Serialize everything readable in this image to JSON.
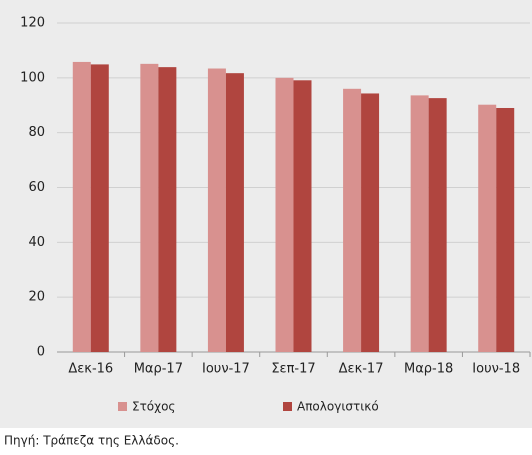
{
  "chart_data": {
    "type": "bar",
    "categories": [
      "Δεκ-16",
      "Μαρ-17",
      "Ιουν-17",
      "Σεπ-17",
      "Δεκ-17",
      "Μαρ-18",
      "Ιουν-18"
    ],
    "series": [
      {
        "name": "Στόχος",
        "color": "#d8918f",
        "values": [
          105.8,
          105.1,
          103.4,
          100.0,
          96.0,
          93.6,
          90.2
        ]
      },
      {
        "name": "Απολογιστικό",
        "color": "#b0453f",
        "values": [
          104.9,
          103.9,
          101.7,
          99.1,
          94.3,
          92.6,
          89.0
        ]
      }
    ],
    "ylim": [
      0,
      120
    ],
    "yticks": [
      0,
      20,
      40,
      60,
      80,
      100,
      120
    ],
    "grid": true,
    "legend": "bottom",
    "source": "Πηγή: Τράπεζα της Ελλάδος."
  }
}
